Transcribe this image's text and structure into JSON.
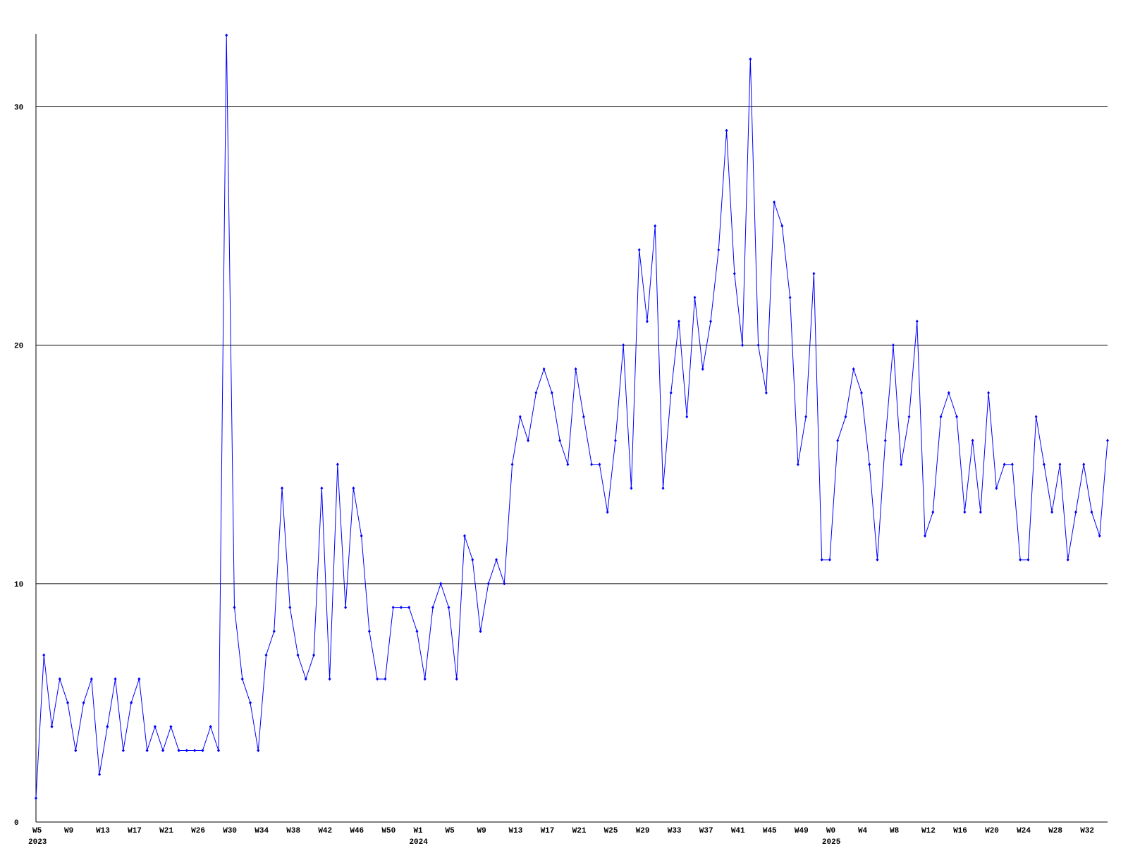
{
  "chart_data": {
    "type": "line",
    "categories": [
      "W5",
      null,
      null,
      null,
      "W9",
      null,
      null,
      null,
      "W13",
      null,
      null,
      null,
      "W17",
      null,
      null,
      null,
      "W21",
      null,
      null,
      null,
      "W26",
      null,
      null,
      null,
      "W30",
      null,
      null,
      null,
      "W34",
      null,
      null,
      null,
      "W38",
      null,
      null,
      null,
      "W42",
      null,
      null,
      null,
      "W46",
      null,
      null,
      null,
      "W50",
      null,
      null,
      null,
      "W1",
      null,
      null,
      null,
      "W5",
      null,
      null,
      null,
      "W9",
      null,
      null,
      null,
      "W13",
      null,
      null,
      null,
      "W17",
      null,
      null,
      null,
      "W21",
      null,
      null,
      null,
      "W25",
      null,
      null,
      null,
      "W29",
      null,
      null,
      null,
      "W33",
      null,
      null,
      null,
      "W37",
      null,
      null,
      null,
      "W41",
      null,
      null,
      null,
      "W45",
      null,
      null,
      null,
      "W49",
      null,
      null,
      null,
      "W0",
      null,
      null,
      null,
      "W4",
      null,
      null,
      null,
      "W8",
      null,
      null,
      null,
      "W12",
      null,
      null,
      null,
      "W16",
      null,
      null,
      null,
      "W20",
      null,
      null,
      null,
      "W24",
      null,
      null,
      null,
      "W28",
      null,
      null,
      null,
      "W32",
      null,
      null,
      null
    ],
    "category_years": [
      "2023",
      null,
      null,
      null,
      null,
      null,
      null,
      null,
      null,
      null,
      null,
      null,
      null,
      null,
      null,
      null,
      null,
      null,
      null,
      null,
      null,
      null,
      null,
      null,
      null,
      null,
      null,
      null,
      null,
      null,
      null,
      null,
      null,
      null,
      null,
      null,
      null,
      null,
      null,
      null,
      null,
      null,
      null,
      null,
      null,
      null,
      null,
      null,
      "2024",
      null,
      null,
      null,
      null,
      null,
      null,
      null,
      null,
      null,
      null,
      null,
      null,
      null,
      null,
      null,
      null,
      null,
      null,
      null,
      null,
      null,
      null,
      null,
      null,
      null,
      null,
      null,
      null,
      null,
      null,
      null,
      null,
      null,
      null,
      null,
      null,
      null,
      null,
      null,
      null,
      null,
      null,
      null,
      null,
      null,
      null,
      null,
      null,
      null,
      null,
      null,
      "2025",
      null,
      null,
      null,
      null,
      null,
      null,
      null,
      null,
      null,
      null,
      null,
      null,
      null,
      null,
      null,
      null,
      null,
      null,
      null,
      null,
      null,
      null,
      null,
      null,
      null,
      null,
      null,
      null,
      null,
      null,
      null,
      null,
      null,
      null,
      null
    ],
    "values": [
      1,
      7,
      4,
      6,
      5,
      3,
      5,
      6,
      2,
      4,
      6,
      3,
      5,
      6,
      3,
      4,
      3,
      4,
      3,
      3,
      3,
      3,
      4,
      3,
      33,
      9,
      6,
      5,
      3,
      7,
      8,
      14,
      9,
      7,
      6,
      7,
      14,
      6,
      15,
      9,
      14,
      12,
      8,
      6,
      6,
      9,
      9,
      9,
      8,
      6,
      9,
      10,
      9,
      6,
      12,
      11,
      8,
      10,
      11,
      10,
      15,
      17,
      16,
      18,
      19,
      18,
      16,
      15,
      19,
      17,
      15,
      15,
      13,
      16,
      20,
      14,
      24,
      21,
      25,
      14,
      18,
      21,
      17,
      22,
      19,
      21,
      24,
      29,
      23,
      20,
      32,
      20,
      18,
      26,
      25,
      22,
      15,
      17,
      23,
      11,
      11,
      16,
      17,
      19,
      18,
      15,
      11,
      16,
      20,
      15,
      17,
      21,
      12,
      13,
      17,
      18,
      17,
      13,
      16,
      13,
      18,
      14,
      15,
      15,
      11,
      11,
      17,
      15,
      13,
      15,
      11,
      13,
      15,
      13,
      12,
      16
    ],
    "color": "#0000ff",
    "ylim": [
      0,
      33
    ],
    "yticks": [
      0,
      10,
      20,
      30
    ],
    "grid": true
  }
}
